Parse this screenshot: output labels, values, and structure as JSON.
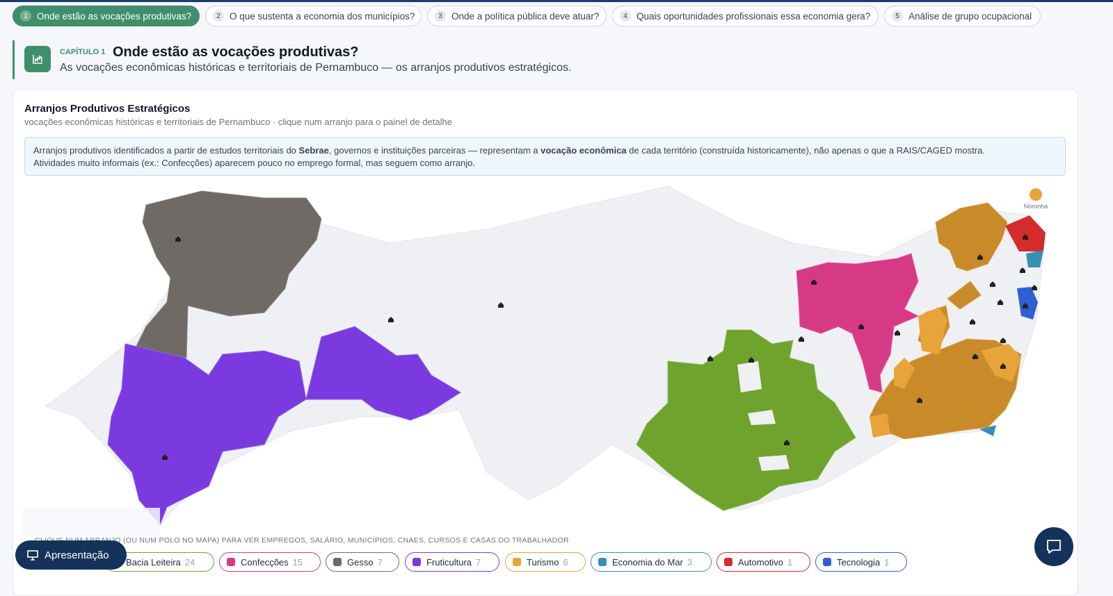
{
  "tabs": [
    {
      "number": 1,
      "label": "Onde estão as vocações produtivas?"
    },
    {
      "number": 2,
      "label": "O que sustenta a economia dos municípios?"
    },
    {
      "number": 3,
      "label": "Onde a política pública deve atuar?"
    },
    {
      "number": 4,
      "label": "Quais oportunidades profissionais essa economia gera?"
    },
    {
      "number": 5,
      "label": "Análise de grupo ocupacional"
    }
  ],
  "chapter": {
    "kicker": "CAPÍTULO 1",
    "title": "Onde estão as vocações produtivas?",
    "subtitle": "As vocações econômicas históricas e territoriais de Pernambuco — os arranjos produtivos estratégicos."
  },
  "card": {
    "title": "Arranjos Produtivos Estratégicos",
    "subtitle": "vocações econômicas históricas e territoriais de Pernambuco · clique num arranjo para o painel de detalhe",
    "info": [
      "Arranjos produtivos identificados a partir de estudos territoriais do ",
      "Sebrae",
      ", governos e instituições parceiras — representam a ",
      "vocação econômica",
      " de cada território (construída historicamente), não apenas o que a RAIS/CAGED mostra.",
      "Atividades muito informais (ex.: Confecções) aparecem pouco no emprego formal, mas seguem como arranjo."
    ]
  },
  "map": {
    "island_label": "Noronha"
  },
  "hint": "CLIQUE NUM ARRANJO (OU NUM POLO NO MAPA) PARA VER EMPREGOS, SALÁRIO, MUNICÍPIOS, CNAES, CURSOS E CASAS DO TRABALHADOR",
  "legend": [
    {
      "name": "Bacia Leiteira",
      "count": 24,
      "color": "#6fa32e"
    },
    {
      "name": "Confecções",
      "count": 15,
      "color": "#d63a85"
    },
    {
      "name": "Gesso",
      "count": 7,
      "color": "#6f6a66"
    },
    {
      "name": "Fruticultura",
      "count": 7,
      "color": "#7a3ae0"
    },
    {
      "name": "Turismo",
      "count": 6,
      "color": "#e8a33a"
    },
    {
      "name": "Economia do Mar",
      "count": 3,
      "color": "#3a8fb7"
    },
    {
      "name": "Automotivo",
      "count": 1,
      "color": "#d62b2b"
    },
    {
      "name": "Tecnologia",
      "count": 1,
      "color": "#2f5fd6"
    }
  ],
  "button": "Apresentação"
}
